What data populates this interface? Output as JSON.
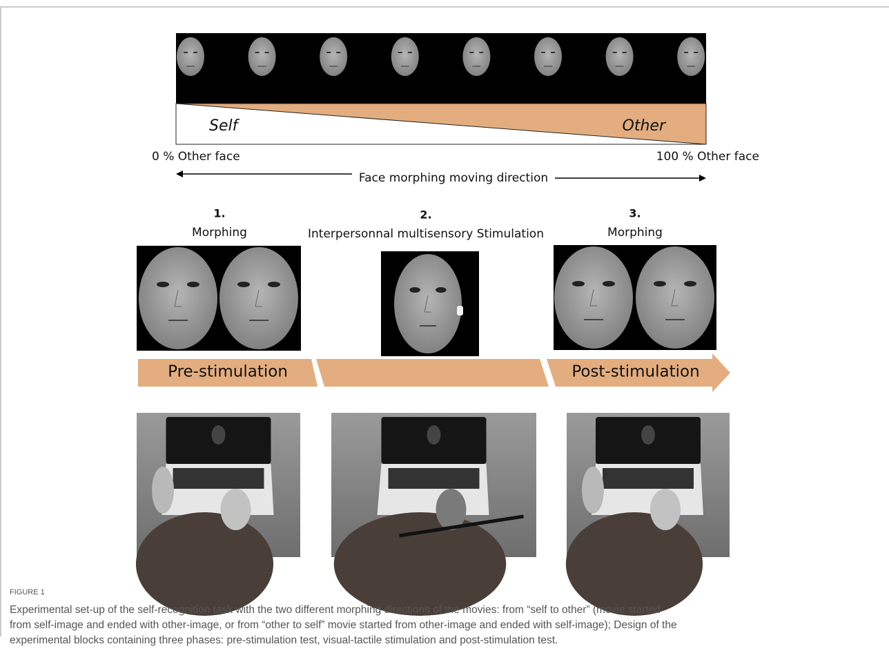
{
  "figure": {
    "strip": {
      "left_label": "Self",
      "right_label": "Other",
      "start_text": "0 % Other face",
      "end_text": "100 % Other face",
      "direction_text": "Face morphing moving direction"
    },
    "phases": [
      {
        "number": "1.",
        "title": "Morphing"
      },
      {
        "number": "2.",
        "title": "Interpersonnal multisensory Stimulation"
      },
      {
        "number": "3.",
        "title": "Morphing"
      }
    ],
    "band": {
      "left": "Pre-stimulation",
      "right": "Post-stimulation"
    },
    "label": "FIGURE 1",
    "caption_lines": [
      "Experimental set-up of the self-recognition task with the two different morphing directions of the movies: from “self to other” (movie started",
      "from self-image and ended with other-image, or from “other to self” movie started from other-image and ended with self-image); Design of the",
      "experimental blocks containing three phases: pre-stimulation test, visual-tactile stimulation and post-stimulation test."
    ]
  }
}
